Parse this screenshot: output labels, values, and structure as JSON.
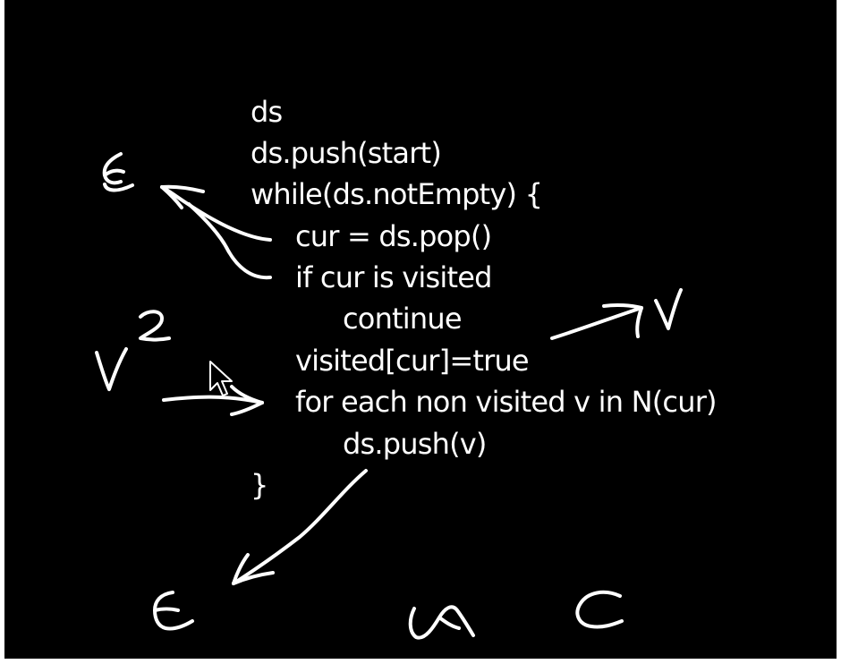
{
  "pseudocode": {
    "lines": [
      "ds",
      "ds.push(start)",
      "while(ds.notEmpty) {",
      "cur = ds.pop()",
      "if cur is visited",
      "continue",
      "visited[cur]=true",
      "for each non visited v in N(cur)",
      "ds.push(v)",
      "}"
    ]
  },
  "annotations": {
    "handwritten": [
      "E",
      "V",
      "2",
      "V",
      "E",
      "C"
    ],
    "icons": [
      "mouse-cursor-icon"
    ],
    "colors": {
      "background": "#000000",
      "ink": "#ffffff"
    }
  }
}
